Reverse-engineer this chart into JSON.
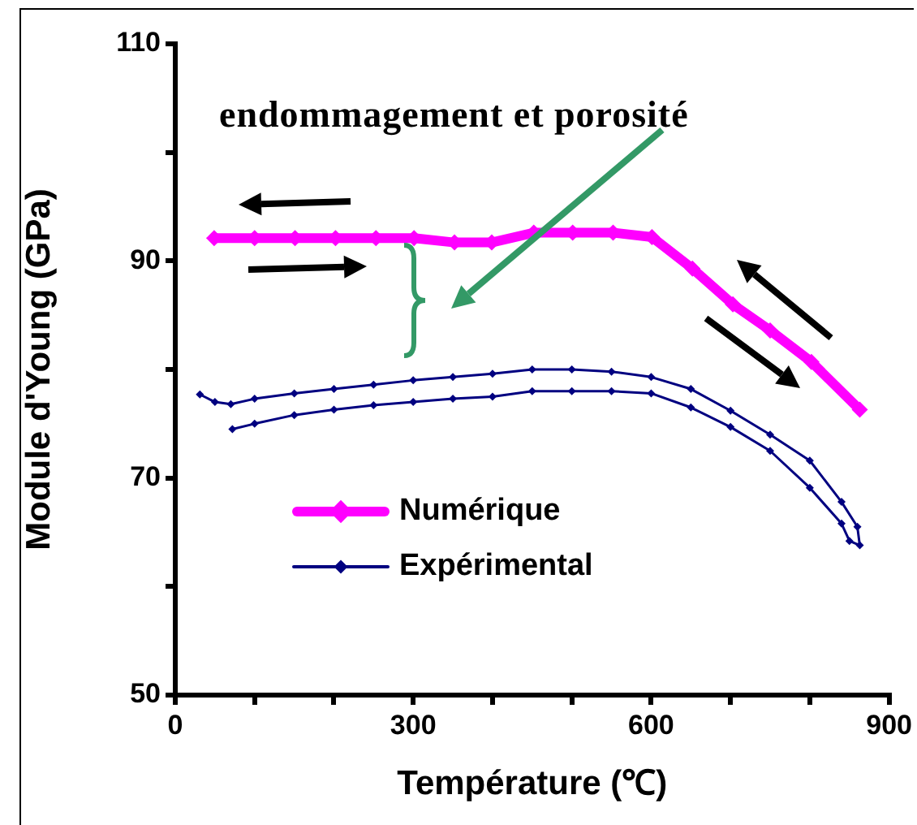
{
  "chart_data": {
    "type": "line",
    "xlabel": "Température (℃)",
    "ylabel": "Module d'Young (GPa)",
    "annotations": [
      "endommagement et porosité"
    ],
    "xlim": [
      0,
      900
    ],
    "xticks": [
      0,
      {
        "value": 100,
        "label": null
      },
      {
        "value": 200,
        "label": null
      },
      300,
      {
        "value": 400,
        "label": null
      },
      {
        "value": 500,
        "label": null
      },
      600,
      {
        "value": 700,
        "label": null
      },
      {
        "value": 800,
        "label": null
      },
      900
    ],
    "ylim": [
      50,
      110
    ],
    "yticks": [
      50,
      {
        "value": 60,
        "label": null
      },
      70,
      {
        "value": 80,
        "label": null
      },
      90,
      {
        "value": 100,
        "label": null
      },
      110
    ],
    "grid": false,
    "legend": "bottom left",
    "marker": "diamond",
    "line_style": "solid",
    "series": [
      {
        "name": "Numérique",
        "color": "#ff00ff",
        "x": [
          49,
          100,
          151,
          202,
          253,
          301,
          352,
          399,
          452,
          501,
          552,
          601,
          652,
          703,
          750,
          802,
          863
        ],
        "values": [
          92.1,
          92.1,
          92.1,
          92.1,
          92.1,
          92.1,
          91.7,
          91.7,
          92.6,
          92.6,
          92.6,
          92.2,
          89.3,
          86.0,
          83.6,
          80.7,
          76.3
        ]
      },
      {
        "name": "Expérimental",
        "color": "#000080",
        "x": [
          31,
          50,
          70,
          100,
          150,
          200,
          250,
          300,
          350,
          400,
          450,
          500,
          550,
          600,
          650,
          700,
          750,
          800,
          840,
          860,
          863,
          850,
          840,
          800,
          750,
          700,
          650,
          600,
          550,
          500,
          450,
          400,
          350,
          300,
          250,
          200,
          150,
          100,
          72
        ],
        "values": [
          77.7,
          77.0,
          76.8,
          77.3,
          77.8,
          78.2,
          78.6,
          79.0,
          79.3,
          79.6,
          80.0,
          80.0,
          79.8,
          79.3,
          78.2,
          76.2,
          74.0,
          71.6,
          67.8,
          65.5,
          63.8,
          64.2,
          65.8,
          69.1,
          72.5,
          74.7,
          76.5,
          77.8,
          78.0,
          78.0,
          78.0,
          77.5,
          77.3,
          77.0,
          76.7,
          76.3,
          75.8,
          75.0,
          74.5
        ]
      }
    ]
  }
}
